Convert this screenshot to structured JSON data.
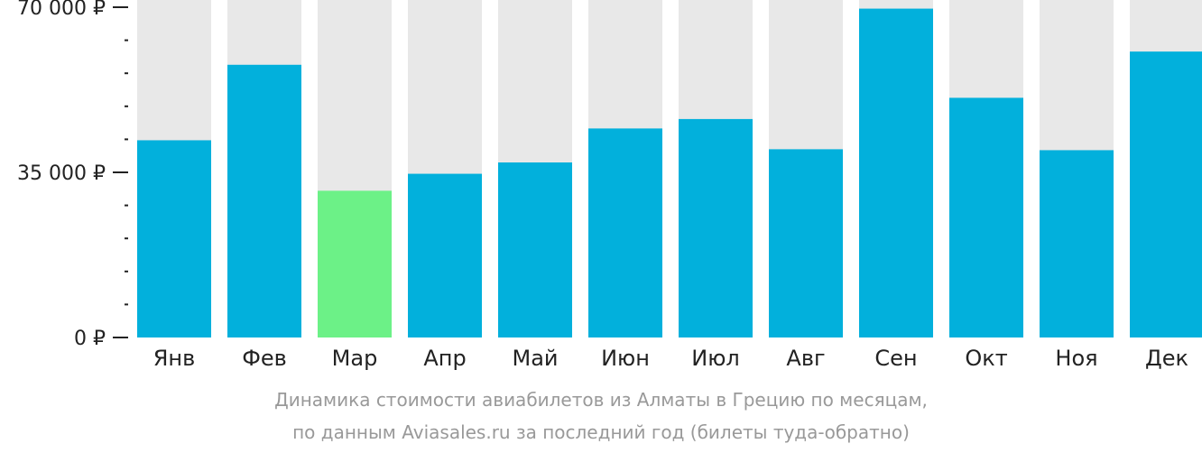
{
  "chart_data": {
    "type": "bar",
    "categories": [
      "Янв",
      "Фев",
      "Мар",
      "Апр",
      "Май",
      "Июн",
      "Июл",
      "Авг",
      "Сен",
      "Окт",
      "Ноя",
      "Дек"
    ],
    "values": [
      41800,
      57800,
      31100,
      34700,
      37100,
      44300,
      46300,
      39900,
      69700,
      50800,
      39700,
      60600
    ],
    "highlight_index": 2,
    "ylim": [
      0,
      70000
    ],
    "yticks": [
      {
        "value": 0,
        "label": "0 ₽"
      },
      {
        "value": 35000,
        "label": "35 000 ₽"
      },
      {
        "value": 70000,
        "label": "70 000 ₽"
      }
    ],
    "minor_tick_step": 7000,
    "colors": {
      "bar": "#02b0dc",
      "highlight": "#6cf187",
      "background_bar": "#e8e8e8",
      "axis": "#222222"
    }
  },
  "caption": {
    "line1": "Динамика стоимости авиабилетов из Алматы в Грецию по месяцам,",
    "line2": "по данным Aviasales.ru за последний год (билеты туда-обратно)"
  }
}
